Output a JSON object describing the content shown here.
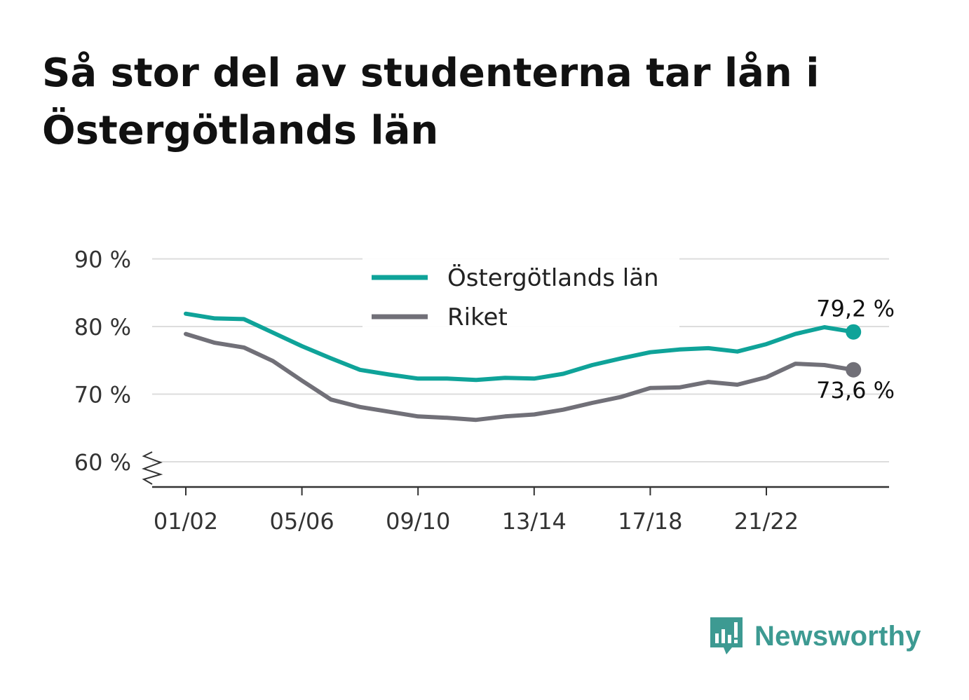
{
  "title_lines": [
    "Så stor del av studenterna tar lån i",
    "Östergötlands län"
  ],
  "brand": {
    "name": "Newsworthy",
    "color": "#3d9a92"
  },
  "colors": {
    "ostergotland": "#0fa399",
    "riket": "#717078",
    "grid": "#dddddd",
    "axis": "#333333"
  },
  "chart_data": {
    "type": "line",
    "x": [
      "01/02",
      "02/03",
      "03/04",
      "04/05",
      "05/06",
      "06/07",
      "07/08",
      "08/09",
      "09/10",
      "10/11",
      "11/12",
      "12/13",
      "13/14",
      "14/15",
      "15/16",
      "16/17",
      "17/18",
      "18/19",
      "19/20",
      "20/21",
      "21/22",
      "22/23",
      "23/24",
      "24/25"
    ],
    "xticks": [
      "01/02",
      "05/06",
      "09/10",
      "13/14",
      "17/18",
      "21/22"
    ],
    "yticks": [
      60,
      70,
      80,
      90
    ],
    "ytick_labels": [
      "60 %",
      "70 %",
      "80 %",
      "90 %"
    ],
    "ylim": [
      56.3,
      90
    ],
    "axis_break": true,
    "legend_position": "top-center",
    "series": [
      {
        "name": "Östergötlands län",
        "color": "#0fa399",
        "values": [
          81.9,
          81.2,
          81.1,
          79.1,
          77.1,
          75.3,
          73.6,
          72.9,
          72.3,
          72.3,
          72.1,
          72.4,
          72.3,
          73.0,
          74.3,
          75.3,
          76.2,
          76.6,
          76.8,
          76.3,
          77.4,
          78.9,
          79.9,
          79.2
        ],
        "end_label": "79,2 %"
      },
      {
        "name": "Riket",
        "color": "#717078",
        "values": [
          78.9,
          77.6,
          76.9,
          74.9,
          72.0,
          69.2,
          68.1,
          67.4,
          66.7,
          66.5,
          66.2,
          66.7,
          67.0,
          67.7,
          68.7,
          69.6,
          70.9,
          71.0,
          71.8,
          71.4,
          72.5,
          74.5,
          74.3,
          73.6
        ],
        "end_label": "73,6 %"
      }
    ]
  }
}
